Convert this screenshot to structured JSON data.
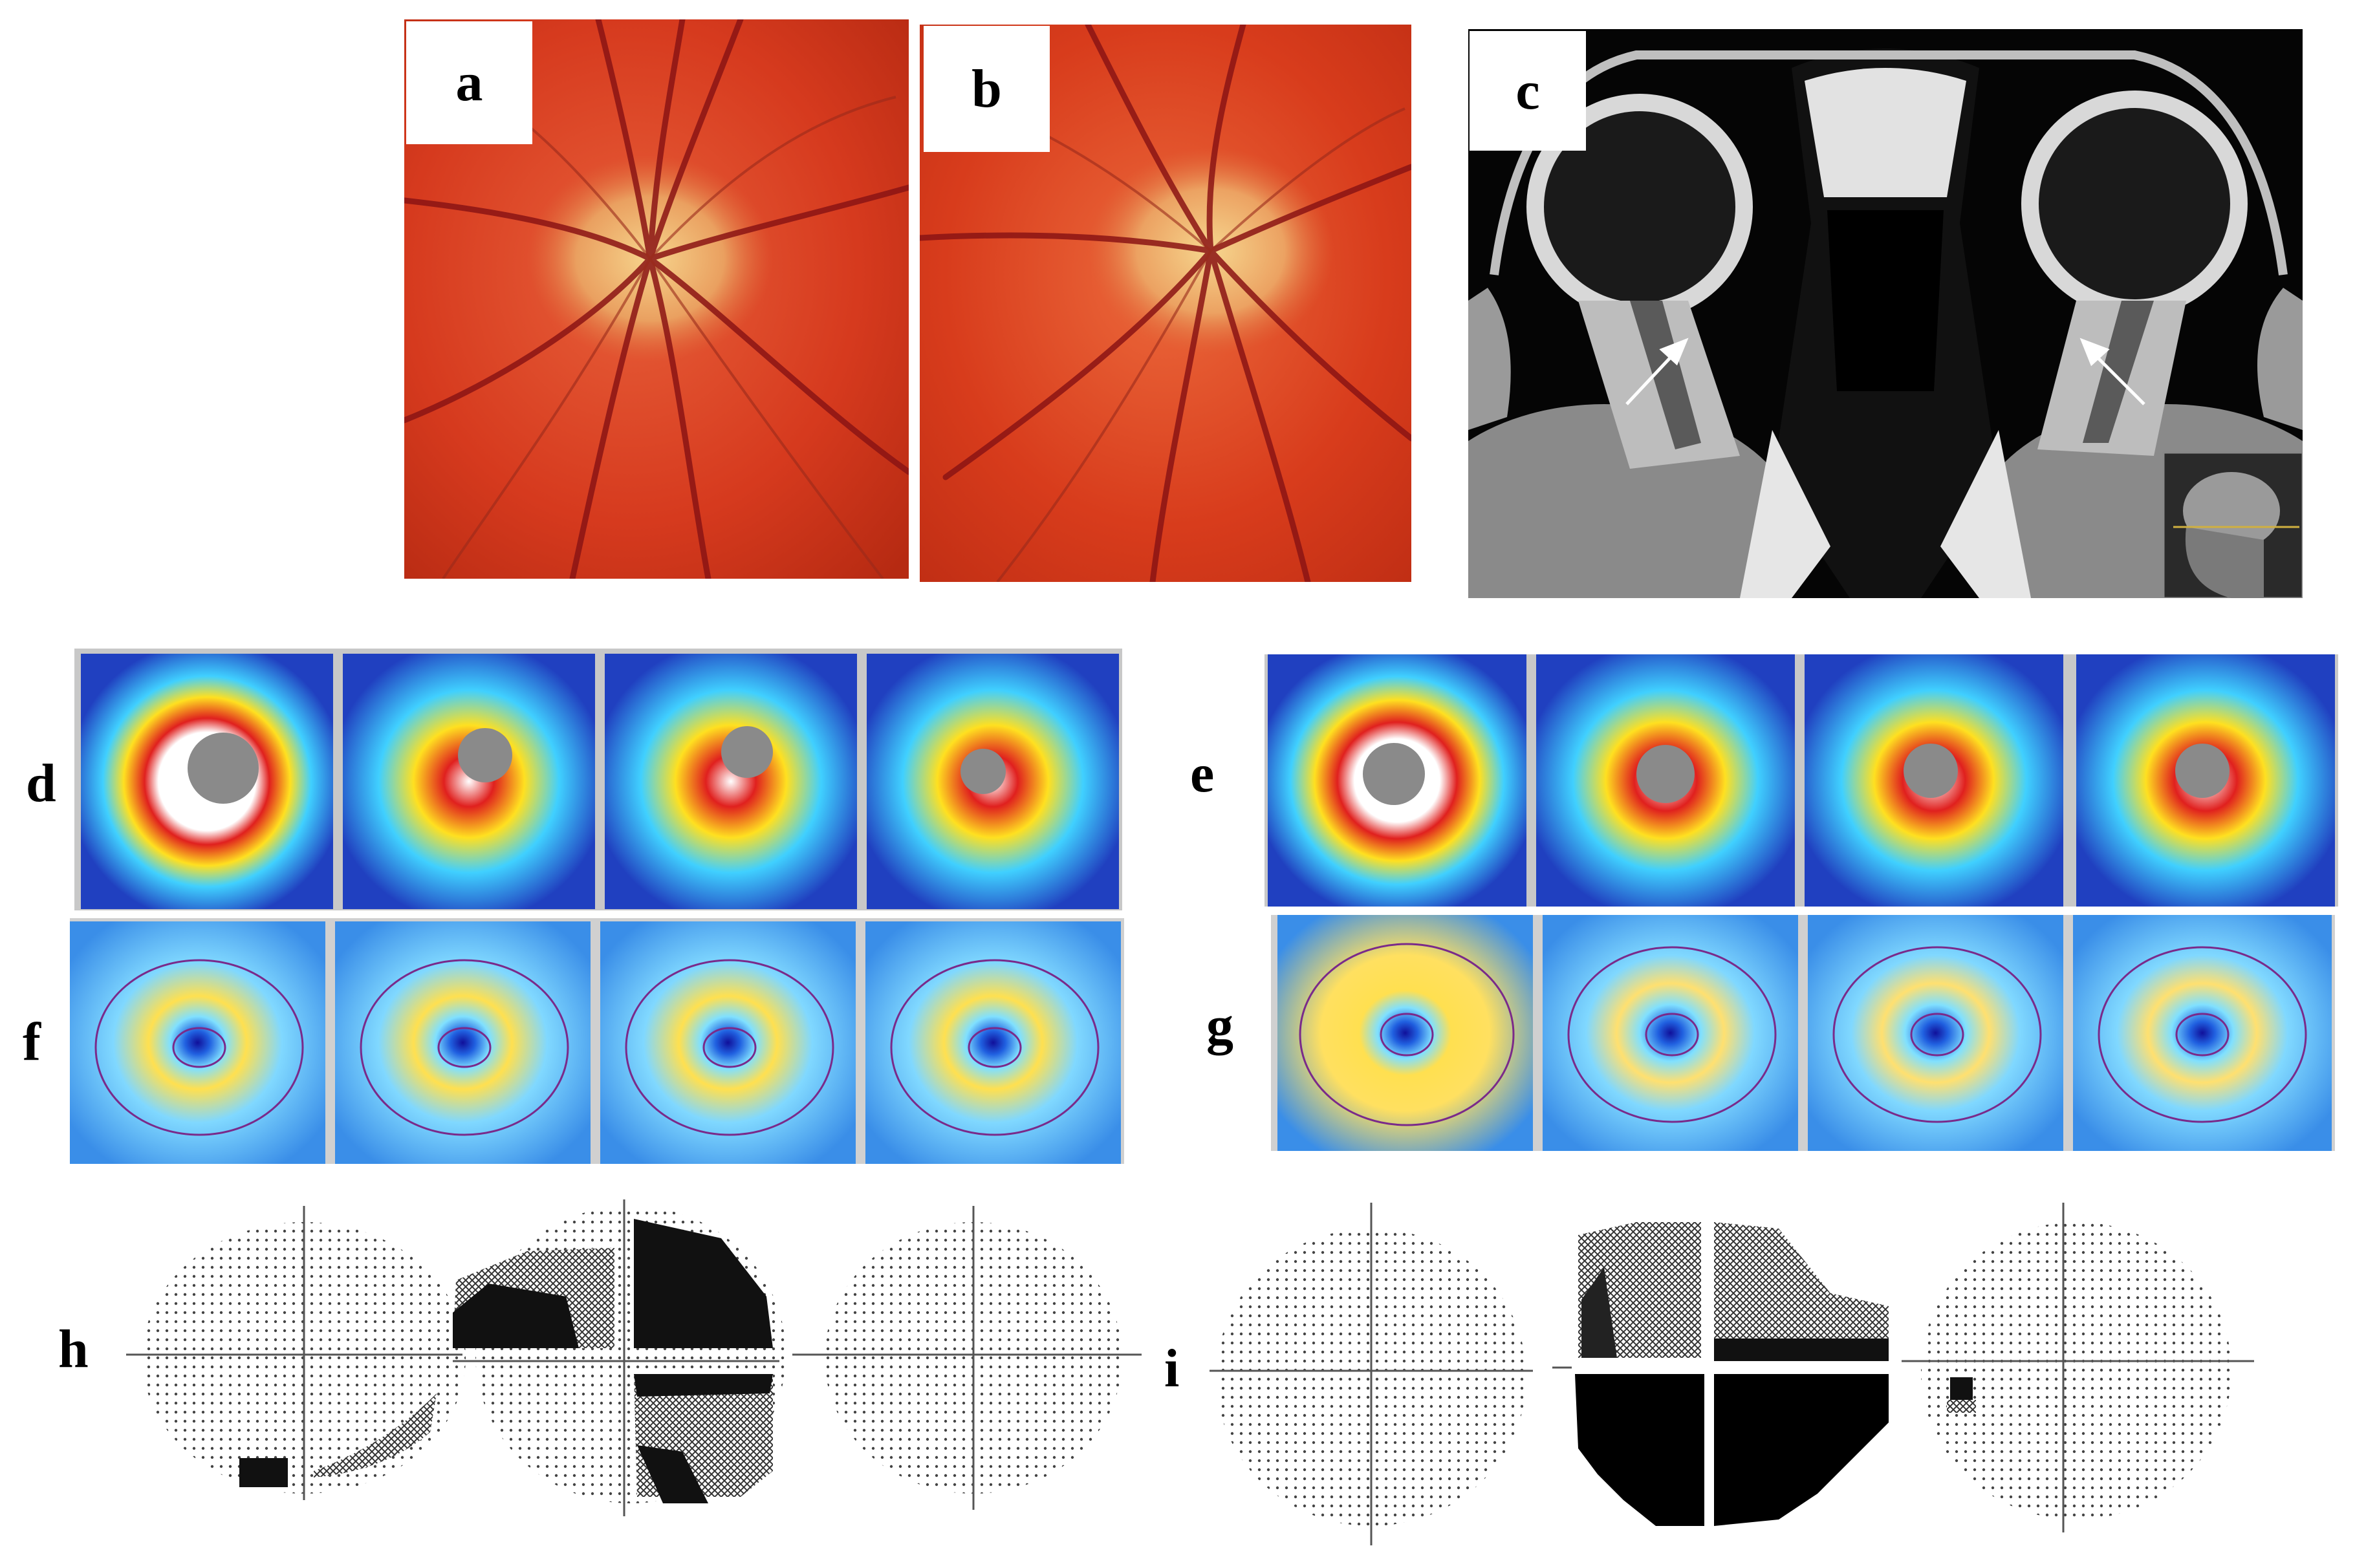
{
  "figure": {
    "panel_labels": {
      "a": "a",
      "b": "b",
      "c": "c",
      "d": "d",
      "e": "e",
      "f": "f",
      "g": "g",
      "h": "h",
      "i": "i"
    },
    "fundus": {
      "colors": {
        "base": "#d63a1e",
        "disc": "#f2c07a",
        "vessel": "#8b1414"
      }
    },
    "mri": {
      "arrows": 2,
      "has_inset": true
    },
    "heatmap_rows": {
      "d_count": 4,
      "e_count": 4,
      "f_count": 4,
      "g_count": 4
    },
    "visual_fields": {
      "h": [
        "h-1",
        "h-2",
        "h-3"
      ],
      "i": [
        "i-1",
        "i-2",
        "i-3"
      ]
    }
  }
}
